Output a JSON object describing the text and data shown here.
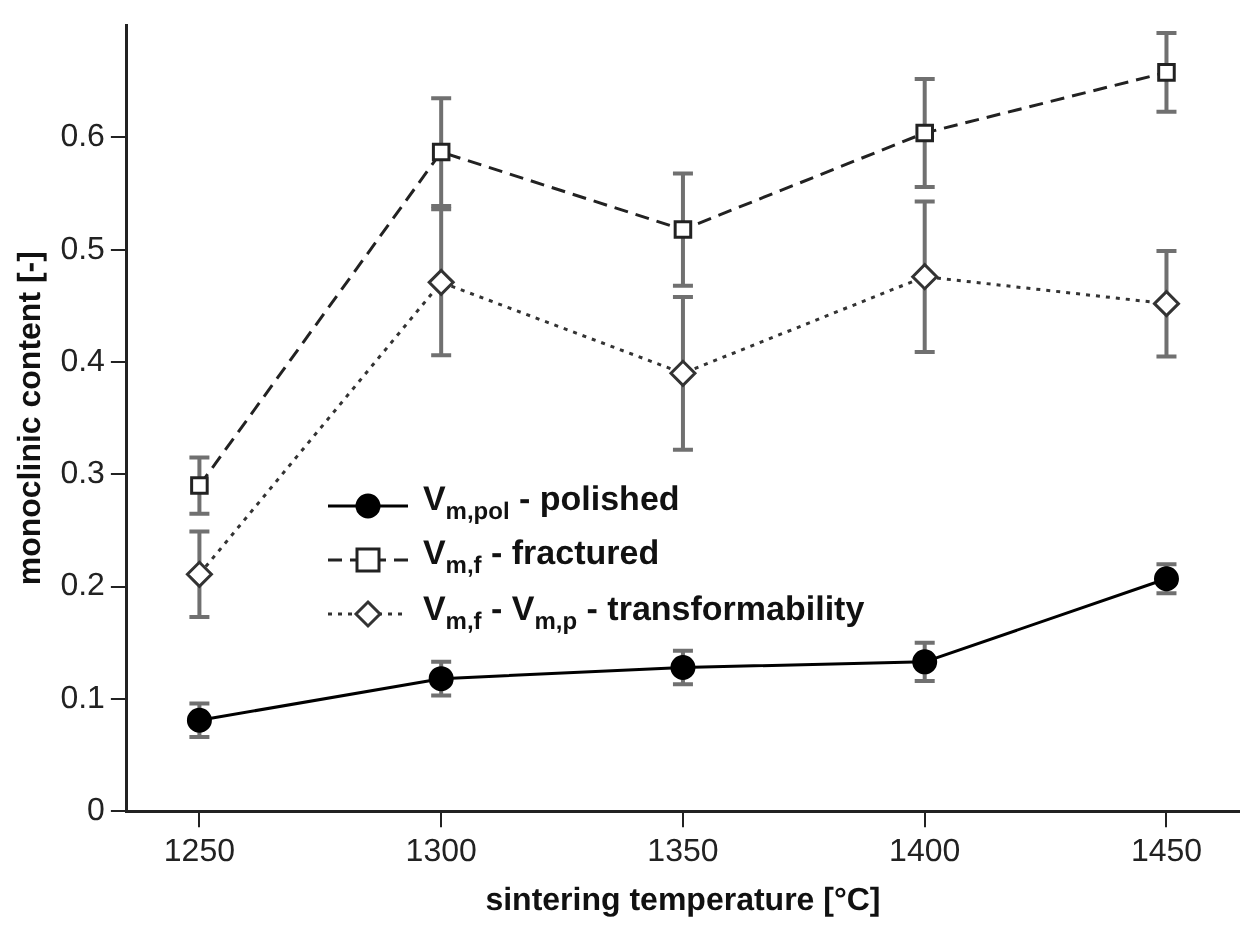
{
  "chart_data": {
    "type": "line",
    "xlabel": "sintering temperature [°C]",
    "ylabel": "monoclinic content [-]",
    "x": [
      1250,
      1300,
      1350,
      1400,
      1450
    ],
    "series": [
      {
        "name": "V$_{m,pol}$ - polished",
        "color": "#000000",
        "marker": "circle",
        "line_style": "solid",
        "values": [
          0.081,
          0.118,
          0.128,
          0.133,
          0.207
        ],
        "errors": [
          0.015,
          0.015,
          0.015,
          0.017,
          0.013
        ]
      },
      {
        "name": "V$_{m,f}$ - fractured",
        "color": "#222222",
        "marker": "square",
        "line_style": "dashed",
        "values": [
          0.29,
          0.587,
          0.518,
          0.604,
          0.658
        ],
        "errors": [
          0.025,
          0.048,
          0.05,
          0.048,
          0.035
        ]
      },
      {
        "name": "V$_{m,f}$ - V$_{m,p}$ - transformability",
        "color": "#333333",
        "marker": "diamond",
        "line_style": "dotted",
        "values": [
          0.211,
          0.471,
          0.39,
          0.476,
          0.452
        ],
        "errors": [
          0.038,
          0.065,
          0.068,
          0.067,
          0.047
        ]
      }
    ],
    "xlim": [
      1235,
      1465
    ],
    "xticks": [
      1250,
      1300,
      1350,
      1400,
      1450
    ],
    "ylim": [
      0,
      0.7
    ],
    "yticks": [
      0,
      0.1,
      0.2,
      0.3,
      0.4,
      0.5,
      0.6
    ],
    "grid": false,
    "legend": "center left"
  }
}
